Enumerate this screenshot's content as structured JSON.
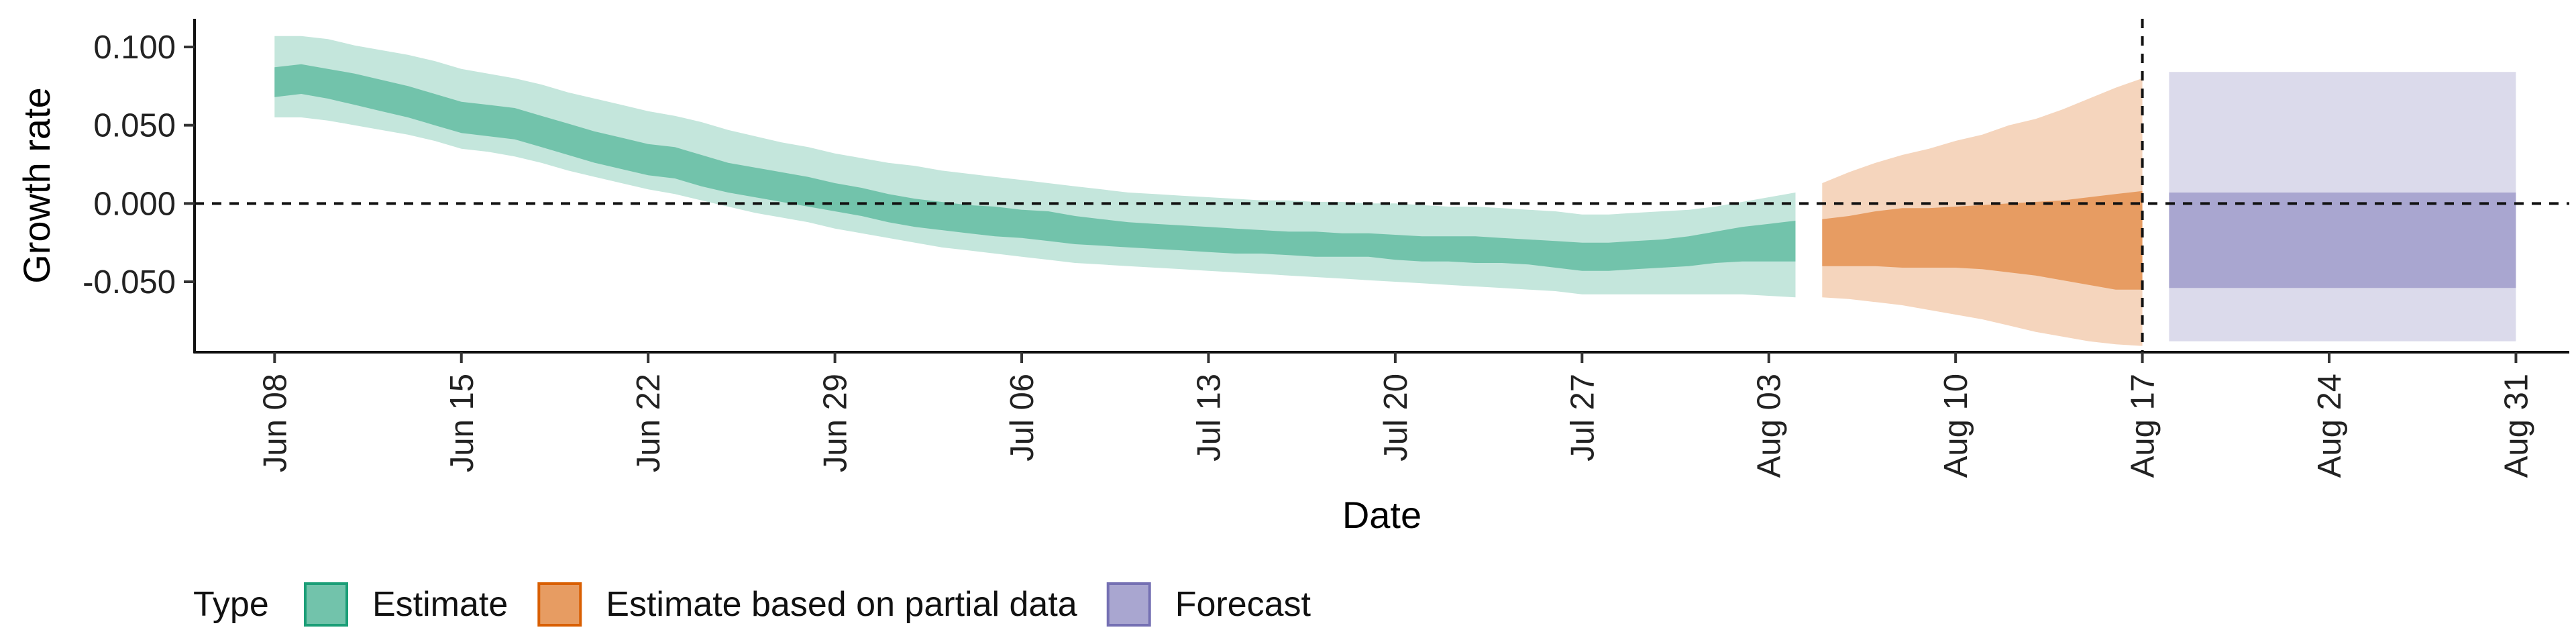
{
  "chart_data": {
    "type": "area",
    "xlabel": "Date",
    "ylabel": "Growth rate",
    "x_range": [
      "2020-06-05",
      "2020-09-02"
    ],
    "ylim": [
      -0.095,
      0.118
    ],
    "x_ticks": [
      {
        "date": "2020-06-08",
        "label": "Jun 08"
      },
      {
        "date": "2020-06-15",
        "label": "Jun 15"
      },
      {
        "date": "2020-06-22",
        "label": "Jun 22"
      },
      {
        "date": "2020-06-29",
        "label": "Jun 29"
      },
      {
        "date": "2020-07-06",
        "label": "Jul 06"
      },
      {
        "date": "2020-07-13",
        "label": "Jul 13"
      },
      {
        "date": "2020-07-20",
        "label": "Jul 20"
      },
      {
        "date": "2020-07-27",
        "label": "Jul 27"
      },
      {
        "date": "2020-08-03",
        "label": "Aug 03"
      },
      {
        "date": "2020-08-10",
        "label": "Aug 10"
      },
      {
        "date": "2020-08-17",
        "label": "Aug 17"
      },
      {
        "date": "2020-08-24",
        "label": "Aug 24"
      },
      {
        "date": "2020-08-31",
        "label": "Aug 31"
      }
    ],
    "y_ticks": [
      {
        "value": 0.1,
        "label": "0.100"
      },
      {
        "value": 0.05,
        "label": "0.050"
      },
      {
        "value": 0.0,
        "label": "0.000"
      },
      {
        "value": -0.05,
        "label": "-0.050"
      }
    ],
    "reference_lines": {
      "horizontal": 0.0,
      "vertical": "2020-08-17"
    },
    "grid": false,
    "legend": {
      "title": "Type",
      "position": "bottom-left"
    },
    "series": [
      {
        "name": "Estimate",
        "fill_color": "#1b9e77",
        "dates": [
          "2020-06-08",
          "2020-06-09",
          "2020-06-10",
          "2020-06-11",
          "2020-06-12",
          "2020-06-13",
          "2020-06-14",
          "2020-06-15",
          "2020-06-16",
          "2020-06-17",
          "2020-06-18",
          "2020-06-19",
          "2020-06-20",
          "2020-06-21",
          "2020-06-22",
          "2020-06-23",
          "2020-06-24",
          "2020-06-25",
          "2020-06-26",
          "2020-06-27",
          "2020-06-28",
          "2020-06-29",
          "2020-06-30",
          "2020-07-01",
          "2020-07-02",
          "2020-07-03",
          "2020-07-04",
          "2020-07-05",
          "2020-07-06",
          "2020-07-07",
          "2020-07-08",
          "2020-07-09",
          "2020-07-10",
          "2020-07-11",
          "2020-07-12",
          "2020-07-13",
          "2020-07-14",
          "2020-07-15",
          "2020-07-16",
          "2020-07-17",
          "2020-07-18",
          "2020-07-19",
          "2020-07-20",
          "2020-07-21",
          "2020-07-22",
          "2020-07-23",
          "2020-07-24",
          "2020-07-25",
          "2020-07-26",
          "2020-07-27",
          "2020-07-28",
          "2020-07-29",
          "2020-07-30",
          "2020-07-31",
          "2020-08-01",
          "2020-08-02",
          "2020-08-03",
          "2020-08-04"
        ],
        "outer_upper": [
          0.107,
          0.107,
          0.105,
          0.101,
          0.098,
          0.095,
          0.091,
          0.086,
          0.083,
          0.08,
          0.076,
          0.071,
          0.067,
          0.063,
          0.059,
          0.056,
          0.052,
          0.047,
          0.043,
          0.039,
          0.036,
          0.032,
          0.029,
          0.026,
          0.024,
          0.021,
          0.019,
          0.017,
          0.015,
          0.013,
          0.011,
          0.009,
          0.007,
          0.006,
          0.005,
          0.004,
          0.003,
          0.002,
          0.002,
          0.001,
          0.001,
          0.0,
          0.0,
          -0.001,
          -0.002,
          -0.002,
          -0.003,
          -0.004,
          -0.005,
          -0.007,
          -0.007,
          -0.006,
          -0.005,
          -0.004,
          -0.002,
          0.001,
          0.004,
          0.007
        ],
        "inner_upper": [
          0.087,
          0.089,
          0.086,
          0.083,
          0.079,
          0.075,
          0.07,
          0.065,
          0.063,
          0.061,
          0.056,
          0.051,
          0.046,
          0.042,
          0.038,
          0.036,
          0.031,
          0.026,
          0.023,
          0.02,
          0.017,
          0.013,
          0.01,
          0.006,
          0.003,
          0.001,
          -0.001,
          -0.002,
          -0.004,
          -0.005,
          -0.008,
          -0.01,
          -0.012,
          -0.013,
          -0.014,
          -0.015,
          -0.016,
          -0.017,
          -0.018,
          -0.018,
          -0.019,
          -0.019,
          -0.02,
          -0.021,
          -0.021,
          -0.021,
          -0.022,
          -0.023,
          -0.024,
          -0.025,
          -0.025,
          -0.024,
          -0.023,
          -0.021,
          -0.018,
          -0.015,
          -0.013,
          -0.011
        ],
        "inner_lower": [
          0.068,
          0.07,
          0.067,
          0.063,
          0.059,
          0.055,
          0.05,
          0.045,
          0.043,
          0.041,
          0.036,
          0.031,
          0.026,
          0.022,
          0.018,
          0.016,
          0.011,
          0.007,
          0.004,
          0.001,
          -0.002,
          -0.005,
          -0.008,
          -0.012,
          -0.015,
          -0.017,
          -0.019,
          -0.021,
          -0.022,
          -0.024,
          -0.026,
          -0.027,
          -0.028,
          -0.029,
          -0.03,
          -0.031,
          -0.032,
          -0.032,
          -0.033,
          -0.034,
          -0.034,
          -0.034,
          -0.036,
          -0.037,
          -0.037,
          -0.038,
          -0.038,
          -0.039,
          -0.041,
          -0.043,
          -0.043,
          -0.042,
          -0.041,
          -0.04,
          -0.038,
          -0.037,
          -0.037,
          -0.037
        ],
        "outer_lower": [
          0.055,
          0.055,
          0.053,
          0.05,
          0.047,
          0.044,
          0.04,
          0.035,
          0.033,
          0.03,
          0.026,
          0.021,
          0.017,
          0.013,
          0.009,
          0.006,
          0.002,
          -0.002,
          -0.006,
          -0.009,
          -0.012,
          -0.016,
          -0.019,
          -0.022,
          -0.025,
          -0.028,
          -0.03,
          -0.032,
          -0.034,
          -0.036,
          -0.038,
          -0.039,
          -0.04,
          -0.041,
          -0.042,
          -0.043,
          -0.044,
          -0.045,
          -0.046,
          -0.047,
          -0.048,
          -0.049,
          -0.05,
          -0.051,
          -0.052,
          -0.053,
          -0.054,
          -0.055,
          -0.056,
          -0.058,
          -0.058,
          -0.058,
          -0.058,
          -0.058,
          -0.058,
          -0.058,
          -0.059,
          -0.06
        ]
      },
      {
        "name": "Estimate based on partial data",
        "fill_color": "#d95f02",
        "dates": [
          "2020-08-05",
          "2020-08-06",
          "2020-08-07",
          "2020-08-08",
          "2020-08-09",
          "2020-08-10",
          "2020-08-11",
          "2020-08-12",
          "2020-08-13",
          "2020-08-14",
          "2020-08-15",
          "2020-08-16",
          "2020-08-17"
        ],
        "outer_upper": [
          0.013,
          0.02,
          0.026,
          0.031,
          0.035,
          0.04,
          0.044,
          0.05,
          0.054,
          0.06,
          0.067,
          0.074,
          0.08
        ],
        "inner_upper": [
          -0.01,
          -0.008,
          -0.005,
          -0.003,
          -0.003,
          -0.002,
          -0.001,
          0.0,
          0.001,
          0.002,
          0.004,
          0.006,
          0.008
        ],
        "inner_lower": [
          -0.04,
          -0.04,
          -0.04,
          -0.041,
          -0.041,
          -0.041,
          -0.042,
          -0.044,
          -0.046,
          -0.049,
          -0.052,
          -0.055,
          -0.055
        ],
        "outer_lower": [
          -0.06,
          -0.061,
          -0.063,
          -0.065,
          -0.068,
          -0.071,
          -0.074,
          -0.078,
          -0.082,
          -0.085,
          -0.088,
          -0.09,
          -0.091
        ]
      },
      {
        "name": "Forecast",
        "fill_color": "#7570b3",
        "dates": [
          "2020-08-18",
          "2020-08-31"
        ],
        "outer_upper": [
          0.084,
          0.084
        ],
        "inner_upper": [
          0.007,
          0.007
        ],
        "inner_lower": [
          -0.054,
          -0.054
        ],
        "outer_lower": [
          -0.088,
          -0.088
        ]
      }
    ]
  }
}
